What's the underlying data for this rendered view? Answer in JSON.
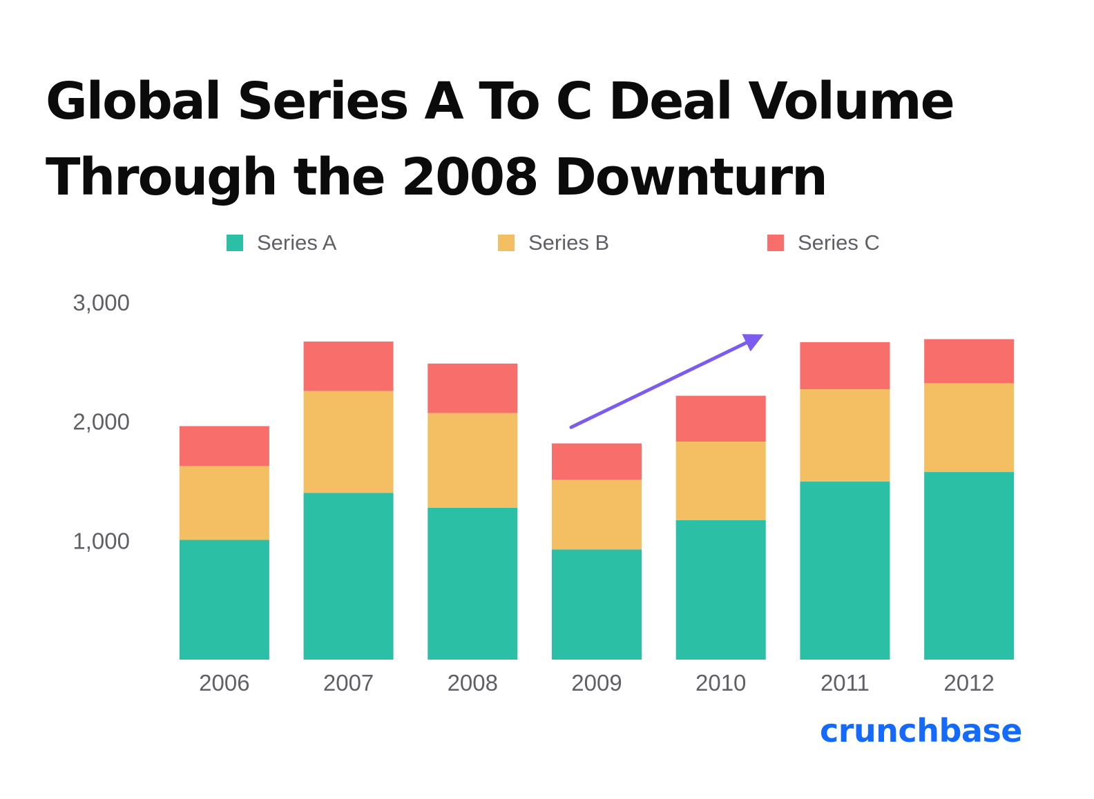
{
  "colors": {
    "series_a": "#2bbfa6",
    "series_b": "#f4be62",
    "series_c": "#f86e6a",
    "arrow": "#7b5bf0",
    "brand": "#146aff",
    "title": "#0b0b0b",
    "axis_text": "#5f6066"
  },
  "brand": {
    "logo_text": "crunchbase"
  },
  "chart_data": {
    "type": "bar",
    "stacked": true,
    "title_lines": [
      "Global Series A To C Deal Volume",
      "Through the 2008 Downturn"
    ],
    "categories": [
      "2006",
      "2007",
      "2008",
      "2009",
      "2010",
      "2011",
      "2012"
    ],
    "series": [
      {
        "name": "Series A",
        "color": "#2bbfa6",
        "values": [
          1005,
          1400,
          1275,
          925,
          1170,
          1495,
          1575
        ]
      },
      {
        "name": "Series B",
        "color": "#f4be62",
        "values": [
          620,
          855,
          795,
          585,
          660,
          775,
          745
        ]
      },
      {
        "name": "Series C",
        "color": "#f86e6a",
        "values": [
          335,
          415,
          415,
          305,
          385,
          395,
          370
        ]
      }
    ],
    "yticks": [
      1000,
      2000,
      3000
    ],
    "ytick_labels": [
      "1,000",
      "2,000",
      "3,000"
    ],
    "ylim": [
      0,
      3000
    ],
    "xlabel": "",
    "ylabel": "",
    "grid": false,
    "legend_position": "top",
    "annotations": [
      {
        "type": "arrow",
        "from": {
          "x": "2009",
          "y": 1950
        },
        "to": {
          "x": "2010",
          "y": 2730
        },
        "direction": "up-right"
      }
    ]
  }
}
